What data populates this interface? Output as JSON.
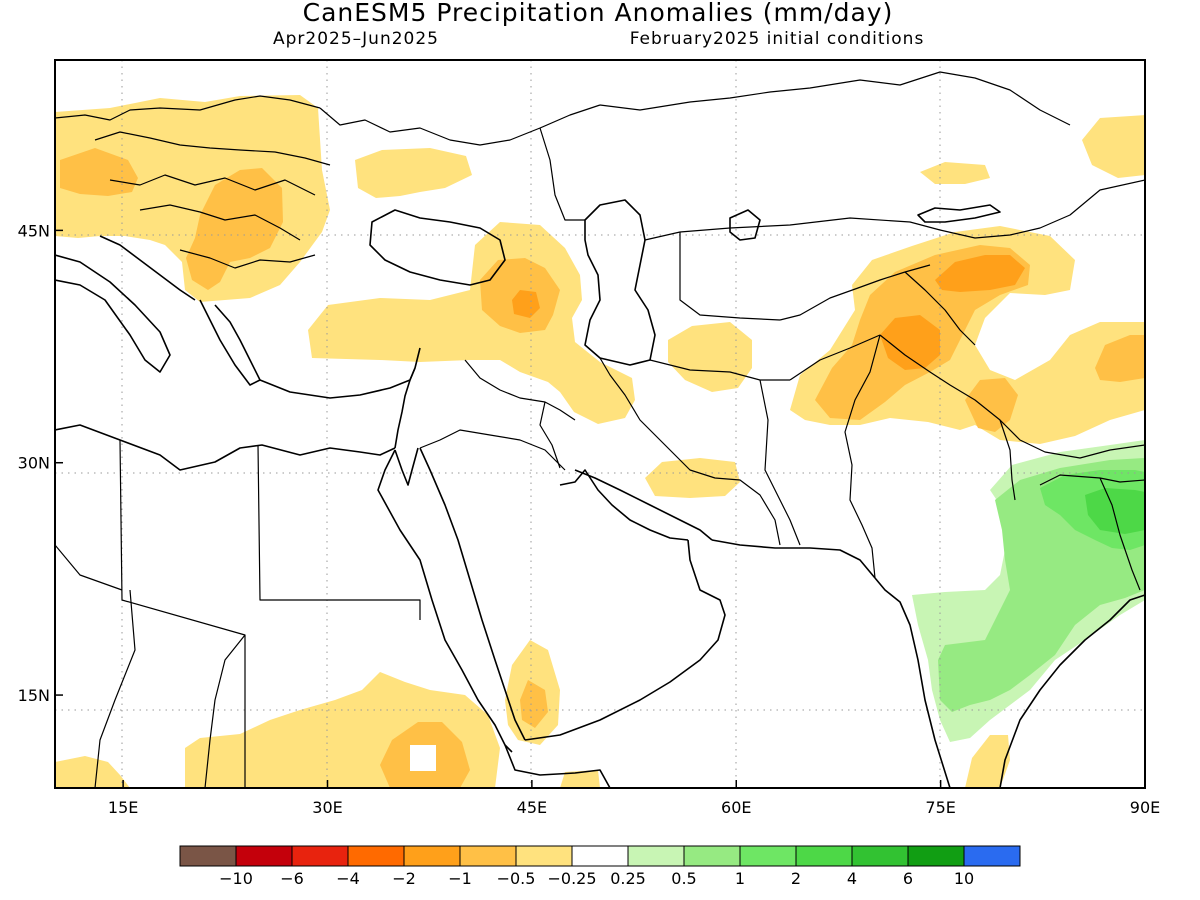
{
  "header": {
    "title": "CanESM5 Precipitation Anomalies (mm/day)",
    "period": "Apr2025–Jun2025",
    "init": "February2025 initial conditions"
  },
  "map": {
    "lon_range": [
      10,
      90
    ],
    "lat_range": [
      9,
      56
    ],
    "lon_ticks": [
      "15E",
      "30E",
      "45E",
      "60E",
      "75E",
      "90E"
    ],
    "lat_ticks": [
      "45N",
      "30N",
      "15N"
    ],
    "grid": "dotted"
  },
  "colorbar": {
    "colors": [
      "#7a5546",
      "#c4000b",
      "#e8230e",
      "#ff6a00",
      "#ffa01a",
      "#ffc046",
      "#ffe27e",
      "#ffffff",
      "#c8f5b4",
      "#96ea82",
      "#6ee664",
      "#4dd847",
      "#32c232",
      "#119e13",
      "#2a6bf0"
    ],
    "labels": [
      "−10",
      "−6",
      "−4",
      "−2",
      "−1",
      "−0.5",
      "−0.25",
      "0.25",
      "0.5",
      "1",
      "2",
      "4",
      "6",
      "10"
    ]
  },
  "anomaly_regions": [
    {
      "name": "eastern-europe",
      "level": "-0.25"
    },
    {
      "name": "central-europe-core",
      "level": "-0.5"
    },
    {
      "name": "anatolia-caucasus",
      "level": "-0.25"
    },
    {
      "name": "caucasus-core",
      "level": "-0.5"
    },
    {
      "name": "central-asia",
      "level": "-0.25"
    },
    {
      "name": "central-asia-core",
      "level": "-0.5"
    },
    {
      "name": "himalaya-core",
      "level": "-1"
    },
    {
      "name": "india-bangladesh",
      "level": "0.25"
    },
    {
      "name": "india-core",
      "level": "0.5"
    },
    {
      "name": "bangladesh-core",
      "level": "1"
    },
    {
      "name": "east-africa",
      "level": "-0.25"
    }
  ]
}
